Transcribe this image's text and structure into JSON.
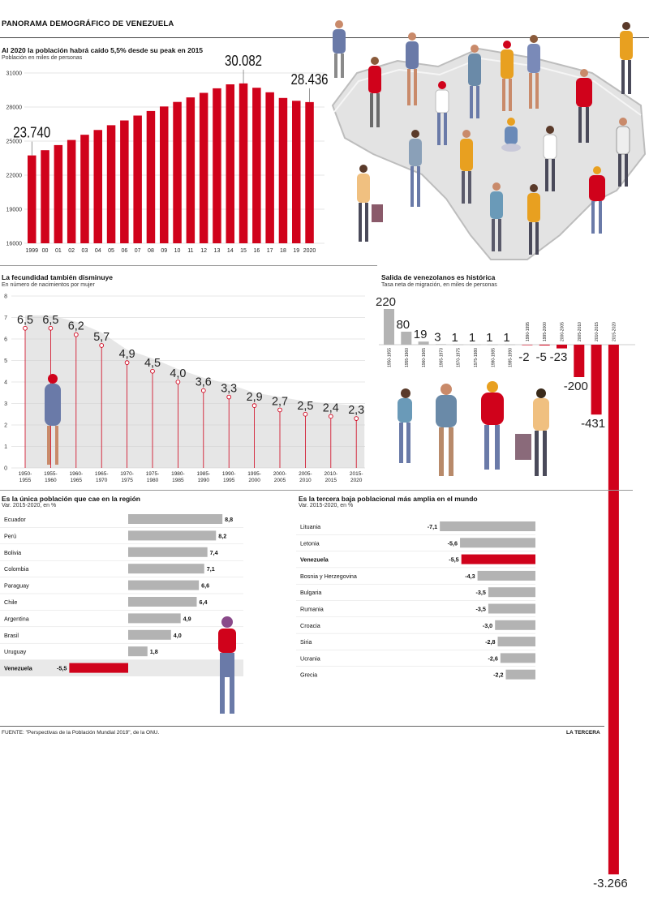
{
  "header": {
    "title": "PANORAMA DEMOGRÁFICO DE VENEZUELA",
    "footer_source": "FUENTE: \"Perspectivas de la Población Mundial 2019\", de la ONU.",
    "brand": "LA TERCERA"
  },
  "colors": {
    "red": "#d0021b",
    "gray": "#b3b3b3",
    "light": "#e6e6e6"
  },
  "chart_data": [
    {
      "id": "population",
      "type": "bar",
      "title": "Al 2020 la población habrá caído 5,5% desde su peak en 2015",
      "subtitle": "Población en miles de personas",
      "categories": [
        "1999",
        "00",
        "01",
        "02",
        "03",
        "04",
        "05",
        "06",
        "07",
        "08",
        "09",
        "10",
        "11",
        "12",
        "13",
        "14",
        "15",
        "16",
        "17",
        "18",
        "19",
        "2020"
      ],
      "values": [
        23740,
        24200,
        24650,
        25100,
        25560,
        25980,
        26400,
        26820,
        27250,
        27650,
        28050,
        28450,
        28850,
        29250,
        29650,
        30000,
        30082,
        29700,
        29300,
        28800,
        28550,
        28436
      ],
      "annotations": [
        {
          "category": "1999",
          "label": "23.740"
        },
        {
          "category": "15",
          "label": "30.082"
        },
        {
          "category": "2020",
          "label": "28.436"
        }
      ],
      "yticks": [
        16000,
        19000,
        22000,
        25000,
        28000,
        31000
      ],
      "ylim": [
        16000,
        31000
      ],
      "grid": true
    },
    {
      "id": "fertility",
      "type": "area",
      "title": "La fecundidad también disminuye",
      "subtitle": "En número de nacimientos por mujer",
      "categories": [
        "1950-1955",
        "1955-1960",
        "1960-1965",
        "1965-1970",
        "1970-1975",
        "1975-1980",
        "1980-1985",
        "1985-1990",
        "1990-1995",
        "1995-2000",
        "2000-2005",
        "2005-2010",
        "2010-2015",
        "2015-2020"
      ],
      "values": [
        6.5,
        6.5,
        6.2,
        5.7,
        4.9,
        4.5,
        4.0,
        3.6,
        3.3,
        2.9,
        2.7,
        2.5,
        2.4,
        2.3
      ],
      "labels": [
        "6,5",
        "6,5",
        "6,2",
        "5,7",
        "4,9",
        "4,5",
        "4,0",
        "3,6",
        "3,3",
        "2,9",
        "2,7",
        "2,5",
        "2,4",
        "2,3"
      ],
      "yticks": [
        0,
        1,
        2,
        3,
        4,
        5,
        6,
        7,
        8
      ],
      "ylim": [
        0,
        8
      ]
    },
    {
      "id": "migration",
      "type": "bar",
      "title": "Salida de venezolanos es histórica",
      "subtitle": "Tasa neta de migración, en miles de personas",
      "categories": [
        "1950-1955",
        "1955-1960",
        "1960-1965",
        "1965-1970",
        "1970-1975",
        "1975-1980",
        "1980-1985",
        "1985-1990",
        "1990-1995",
        "1995-2000",
        "2000-2005",
        "2005-2010",
        "2010-2015",
        "2015-2020"
      ],
      "values": [
        220,
        80,
        19,
        3,
        1,
        1,
        1,
        1,
        -2,
        -5,
        -23,
        -200,
        -431,
        -3266
      ],
      "labels": [
        "220",
        "80",
        "19",
        "3",
        "1",
        "1",
        "1",
        "1",
        "-2",
        "-5",
        "-23",
        "-200",
        "-431",
        "-3.266"
      ]
    },
    {
      "id": "region",
      "type": "bar",
      "orientation": "horizontal",
      "title": "Es la única población que cae en la región",
      "subtitle": "Var. 2015-2020, en %",
      "categories": [
        "Ecuador",
        "Perú",
        "Bolivia",
        "Colombia",
        "Paraguay",
        "Chile",
        "Argentina",
        "Brasil",
        "Uruguay",
        "Venezuela"
      ],
      "values": [
        8.8,
        8.2,
        7.4,
        7.1,
        6.6,
        6.4,
        4.9,
        4.0,
        1.8,
        -5.5
      ],
      "labels": [
        "8,8",
        "8,2",
        "7,4",
        "7,1",
        "6,6",
        "6,4",
        "4,9",
        "4,0",
        "1,8",
        "-5,5"
      ],
      "highlight": "Venezuela"
    },
    {
      "id": "world",
      "type": "bar",
      "orientation": "horizontal",
      "title": "Es la tercera baja poblacional más amplia en el mundo",
      "subtitle": "Var. 2015-2020, en %",
      "categories": [
        "Lituania",
        "Letonia",
        "Venezuela",
        "Bosnia y Herzegovina",
        "Bulgaria",
        "Rumania",
        "Croacia",
        "Siria",
        "Ucrania",
        "Grecia"
      ],
      "values": [
        -7.1,
        -5.6,
        -5.5,
        -4.3,
        -3.5,
        -3.5,
        -3.0,
        -2.8,
        -2.6,
        -2.2
      ],
      "labels": [
        "-7,1",
        "-5,6",
        "-5,5",
        "-4,3",
        "-3,5",
        "-3,5",
        "-3,0",
        "-2,8",
        "-2,6",
        "-2,2"
      ],
      "highlight": "Venezuela"
    }
  ]
}
